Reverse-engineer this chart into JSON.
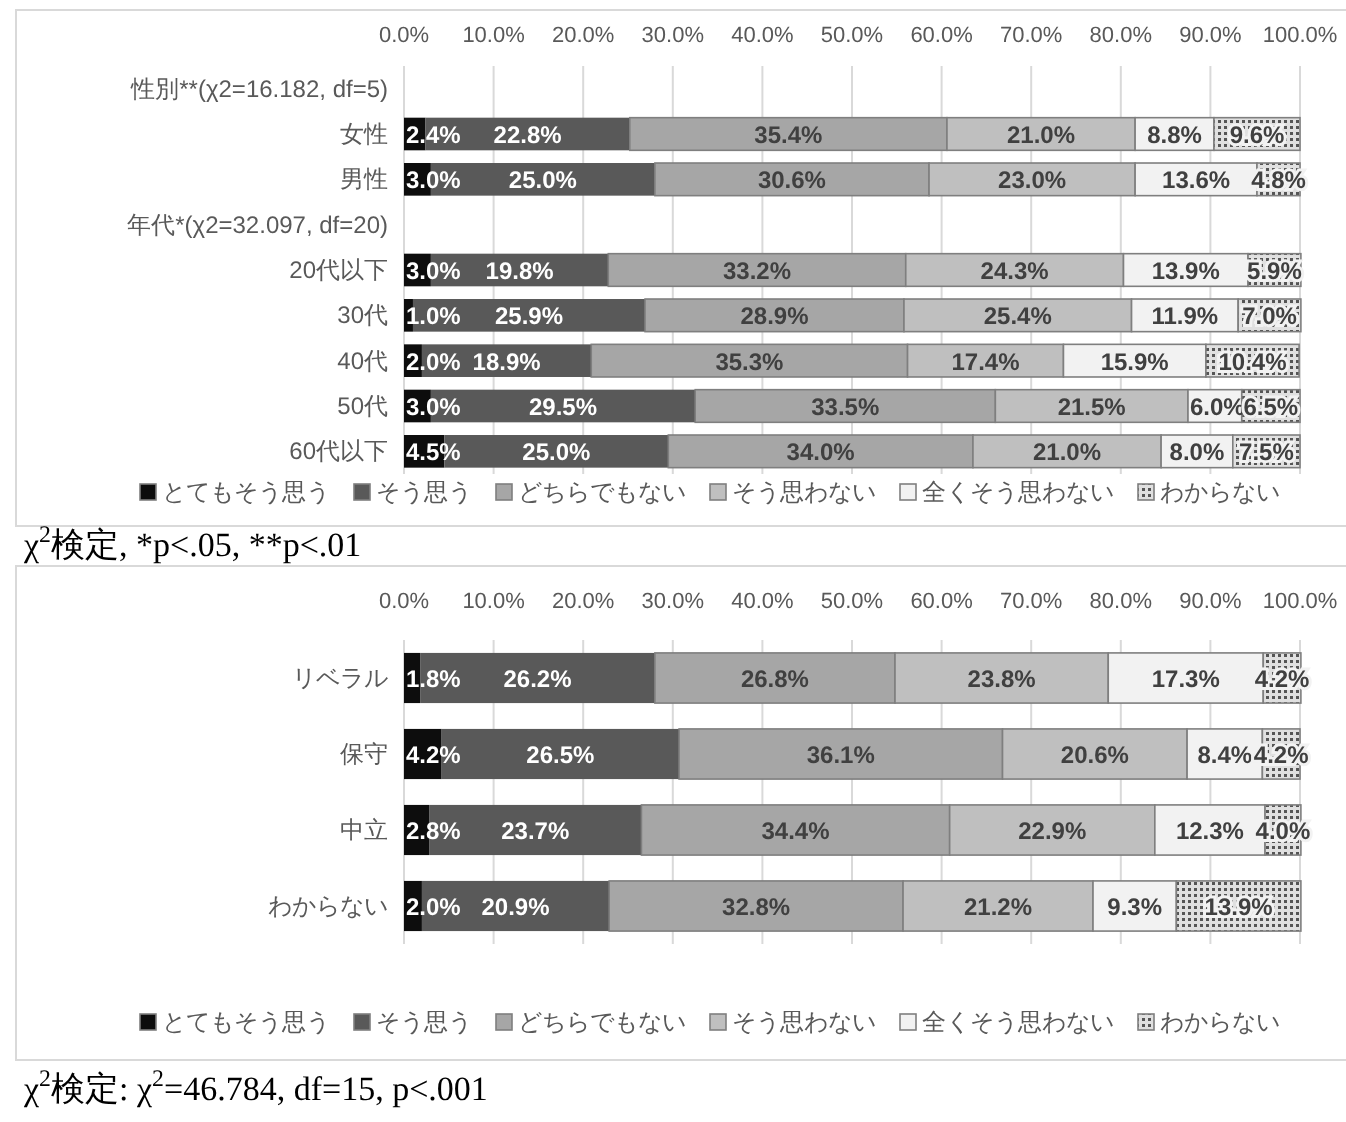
{
  "chart_data": [
    {
      "type": "bar",
      "orientation": "horizontal",
      "stacked": true,
      "categories": [
        "性別**(χ2=16.182, df=5)",
        "女性",
        "男性",
        "年代*(χ2=32.097, df=20)",
        "20代以下",
        "30代",
        "40代",
        "50代",
        "60代以下"
      ],
      "series": [
        {
          "name": "とてもそう思う",
          "color": "#0d0d0d",
          "values": [
            null,
            2.4,
            3.0,
            null,
            3.0,
            1.0,
            2.0,
            3.0,
            4.5
          ],
          "value_labels": [
            null,
            "2.4%",
            "3.0%",
            null,
            "3.0%",
            "1.0%",
            "2.0%",
            "3.0%",
            "4.5%"
          ]
        },
        {
          "name": "そう思う",
          "color": "#595959",
          "values": [
            null,
            22.8,
            25.0,
            null,
            19.8,
            25.9,
            18.9,
            29.5,
            25.0
          ],
          "value_labels": [
            null,
            "22.8%",
            "25.0%",
            null,
            "19.8%",
            "25.9%",
            "18.9%",
            "29.5%",
            "25.0%"
          ]
        },
        {
          "name": "どちらでもない",
          "color": "#a6a6a6",
          "values": [
            null,
            35.4,
            30.6,
            null,
            33.2,
            28.9,
            35.3,
            33.5,
            34.0
          ],
          "value_labels": [
            null,
            "35.4%",
            "30.6%",
            null,
            "33.2%",
            "28.9%",
            "35.3%",
            "33.5%",
            "34.0%"
          ]
        },
        {
          "name": "そう思わない",
          "color": "#bfbfbf",
          "values": [
            null,
            21.0,
            23.0,
            null,
            24.3,
            25.4,
            17.4,
            21.5,
            21.0
          ],
          "value_labels": [
            null,
            "21.0%",
            "23.0%",
            null,
            "24.3%",
            "25.4%",
            "17.4%",
            "21.5%",
            "21.0%"
          ]
        },
        {
          "name": "全くそう思わない",
          "color": "#f2f2f2",
          "values": [
            null,
            8.8,
            13.6,
            null,
            13.9,
            11.9,
            15.9,
            6.0,
            8.0
          ],
          "value_labels": [
            null,
            "8.8%",
            "13.6%",
            null,
            "13.9%",
            "11.9%",
            "15.9%",
            "6.0%",
            "8.0%"
          ]
        },
        {
          "name": "わからない",
          "color": "#8c8c8c",
          "values": [
            null,
            9.6,
            4.8,
            null,
            5.9,
            7.0,
            10.4,
            6.5,
            7.5
          ],
          "value_labels": [
            null,
            "9.6%",
            "4.8%",
            null,
            "5.9%",
            "7.0%",
            "10.4%",
            "6.5%",
            "7.5%"
          ]
        }
      ],
      "xlim": [
        0,
        100
      ],
      "xticks": [
        {
          "value": 0,
          "label": "0.0%"
        },
        {
          "value": 10,
          "label": "10.0%"
        },
        {
          "value": 20,
          "label": "20.0%"
        },
        {
          "value": 30,
          "label": "30.0%"
        },
        {
          "value": 40,
          "label": "40.0%"
        },
        {
          "value": 50,
          "label": "50.0%"
        },
        {
          "value": 60,
          "label": "60.0%"
        },
        {
          "value": 70,
          "label": "70.0%"
        },
        {
          "value": 80,
          "label": "80.0%"
        },
        {
          "value": 90,
          "label": "90.0%"
        },
        {
          "value": 100,
          "label": "100.0%"
        }
      ],
      "grid": "x",
      "legend": "bottom",
      "annotations": [
        "χ$^{2}$検定, *p<.05, **p<.01"
      ]
    },
    {
      "type": "bar",
      "orientation": "horizontal",
      "stacked": true,
      "categories": [
        "リベラル",
        "保守",
        "中立",
        "わからない"
      ],
      "series": [
        {
          "name": "とてもそう思う",
          "color": "#0d0d0d",
          "values": [
            1.8,
            4.2,
            2.8,
            2.0
          ],
          "value_labels": [
            "1.8%",
            "4.2%",
            "2.8%",
            "2.0%"
          ]
        },
        {
          "name": "そう思う",
          "color": "#595959",
          "values": [
            26.2,
            26.5,
            23.7,
            20.9
          ],
          "value_labels": [
            "26.2%",
            "26.5%",
            "23.7%",
            "20.9%"
          ]
        },
        {
          "name": "どちらでもない",
          "color": "#a6a6a6",
          "values": [
            26.8,
            36.1,
            34.4,
            32.8
          ],
          "value_labels": [
            "26.8%",
            "36.1%",
            "34.4%",
            "32.8%"
          ]
        },
        {
          "name": "そう思わない",
          "color": "#bfbfbf",
          "values": [
            23.8,
            20.6,
            22.9,
            21.2
          ],
          "value_labels": [
            "23.8%",
            "20.6%",
            "22.9%",
            "21.2%"
          ]
        },
        {
          "name": "全くそう思わない",
          "color": "#f2f2f2",
          "values": [
            17.3,
            8.4,
            12.3,
            9.3
          ],
          "value_labels": [
            "17.3%",
            "8.4%",
            "12.3%",
            "9.3%"
          ]
        },
        {
          "name": "わからない",
          "color": "#8c8c8c",
          "values": [
            4.2,
            4.2,
            4.0,
            13.9
          ],
          "value_labels": [
            "4.2%",
            "4.2%",
            "4.0%",
            "13.9%"
          ]
        }
      ],
      "xlim": [
        0,
        100
      ],
      "xticks": [
        {
          "value": 0,
          "label": "0.0%"
        },
        {
          "value": 10,
          "label": "10.0%"
        },
        {
          "value": 20,
          "label": "20.0%"
        },
        {
          "value": 30,
          "label": "30.0%"
        },
        {
          "value": 40,
          "label": "40.0%"
        },
        {
          "value": 50,
          "label": "50.0%"
        },
        {
          "value": 60,
          "label": "60.0%"
        },
        {
          "value": 70,
          "label": "70.0%"
        },
        {
          "value": 80,
          "label": "80.0%"
        },
        {
          "value": 90,
          "label": "90.0%"
        },
        {
          "value": 100,
          "label": "100.0%"
        }
      ],
      "grid": "x",
      "legend": "bottom",
      "annotations": [
        "χ$^{2}$検定:  χ$^{2}$=46.784, df=15, p<.001"
      ]
    }
  ]
}
